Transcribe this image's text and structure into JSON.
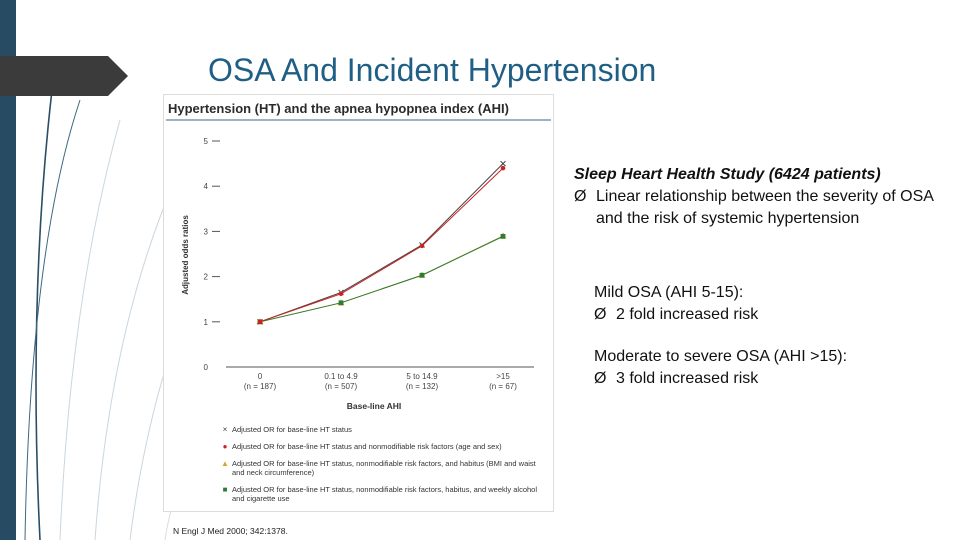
{
  "slide": {
    "title": "OSA And Incident Hypertension",
    "citation": "N Engl J Med 2000; 342:1378."
  },
  "figure": {
    "heading": "Hypertension (HT) and the apnea hypopnea index (AHI)"
  },
  "text": {
    "study": "Sleep Heart Health Study (6424 patients)",
    "bullet_symbol": "Ø",
    "finding": "Linear relationship between the severity of OSA and the risk of systemic hypertension",
    "mild_heading": "Mild OSA (AHI 5-15):",
    "mild_risk": "2 fold increased risk",
    "moderate_heading": "Moderate to severe OSA (AHI >15):",
    "moderate_risk": "3 fold increased risk"
  },
  "colors": {
    "title": "#1f5f85",
    "sidebar": "#264b63",
    "series_x": "#444444",
    "series_red": "#cc2222",
    "series_orange": "#e0a030",
    "series_green": "#2e7d32"
  },
  "chart_data": {
    "type": "line",
    "title": "Hypertension (HT) and the apnea hypopnea index (AHI)",
    "xlabel": "Base-line AHI",
    "ylabel": "Adjusted odds ratios",
    "ylim": [
      0,
      5
    ],
    "yticks": [
      "0",
      "1",
      "2",
      "3",
      "4",
      "5"
    ],
    "categories": [
      "0",
      "0.1 to 4.9",
      "5 to 14.9",
      ">15"
    ],
    "category_counts": [
      "(n = 187)",
      "(n = 507)",
      "(n = 132)",
      "(n = 67)"
    ],
    "grid": false,
    "legend_position": "bottom",
    "series": [
      {
        "name": "Adjusted OR for base-line HT status",
        "marker": "x",
        "values": [
          1.0,
          1.65,
          2.7,
          4.5
        ]
      },
      {
        "name": "Adjusted OR for base-line HT status and nonmodifiable risk factors (age and sex)",
        "marker": "circle",
        "values": [
          1.0,
          1.62,
          2.68,
          4.4
        ]
      },
      {
        "name": "Adjusted OR for base-line HT status, nonmodifiable risk factors, and habitus (BMI and waist and neck circumference)",
        "marker": "triangle",
        "values": [
          1.0,
          1.42,
          2.03,
          2.9
        ]
      },
      {
        "name": "Adjusted OR for base-line HT status, nonmodifiable risk factors, habitus, and weekly alcohol and cigarette use",
        "marker": "square",
        "values": [
          1.0,
          1.42,
          2.03,
          2.89
        ]
      }
    ]
  }
}
